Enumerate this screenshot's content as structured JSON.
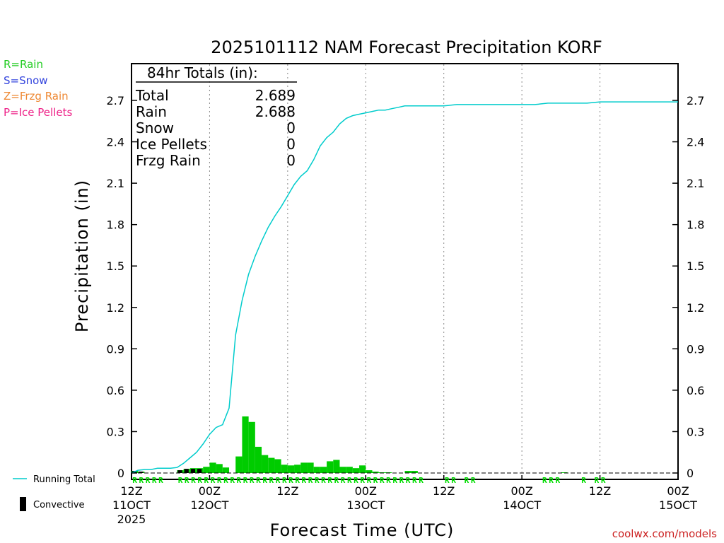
{
  "chart_data": {
    "type": "bar",
    "title": "2025101112 NAM Forecast Precipitation KORF",
    "xlabel": "Forecast Time (UTC)",
    "ylabel": "Precipitation (in)",
    "ylim": [
      0,
      2.95
    ],
    "yticks": [
      "0",
      "0.3",
      "0.6",
      "0.9",
      "1.2",
      "1.5",
      "1.8",
      "2.1",
      "2.4",
      "2.7"
    ],
    "xlim_hours": [
      0,
      84
    ],
    "xticks": [
      {
        "hour": 0,
        "line1": "12Z",
        "line2": "11OCT",
        "line3": "2025"
      },
      {
        "hour": 12,
        "line1": "00Z",
        "line2": "12OCT",
        "line3": ""
      },
      {
        "hour": 24,
        "line1": "12Z",
        "line2": "",
        "line3": ""
      },
      {
        "hour": 36,
        "line1": "00Z",
        "line2": "13OCT",
        "line3": ""
      },
      {
        "hour": 48,
        "line1": "12Z",
        "line2": "",
        "line3": ""
      },
      {
        "hour": 60,
        "line1": "00Z",
        "line2": "14OCT",
        "line3": ""
      },
      {
        "hour": 72,
        "line1": "12Z",
        "line2": "",
        "line3": ""
      },
      {
        "hour": 84,
        "line1": "00Z",
        "line2": "15OCT",
        "line3": ""
      }
    ],
    "series": [
      {
        "name": "Hourly Precipitation",
        "color": "#00cc00",
        "hours": [
          1,
          2,
          3,
          4,
          5,
          6,
          7,
          8,
          9,
          10,
          11,
          12,
          13,
          14,
          15,
          16,
          17,
          18,
          19,
          20,
          21,
          22,
          23,
          24,
          25,
          26,
          27,
          28,
          29,
          30,
          31,
          32,
          33,
          34,
          35,
          36,
          37,
          38,
          39,
          40,
          41,
          42,
          43,
          44,
          45,
          46,
          47,
          48,
          49,
          50,
          51,
          52,
          53,
          54,
          55,
          56,
          57,
          58,
          59,
          60,
          61,
          62,
          63,
          64,
          65,
          66,
          67,
          68,
          69,
          70,
          71,
          72,
          73,
          74,
          75,
          76,
          77,
          78,
          79,
          80,
          81,
          82,
          83,
          84
        ],
        "values": [
          0.015,
          0.01,
          0.0,
          0.0,
          0.0,
          0.0,
          0.0,
          0.02,
          0.03,
          0.035,
          0.035,
          0.045,
          0.075,
          0.065,
          0.04,
          0.0,
          0.12,
          0.41,
          0.37,
          0.19,
          0.13,
          0.11,
          0.1,
          0.06,
          0.055,
          0.06,
          0.075,
          0.075,
          0.045,
          0.045,
          0.085,
          0.095,
          0.045,
          0.045,
          0.035,
          0.055,
          0.02,
          0.01,
          0.005,
          0.005,
          0.0,
          0.0,
          0.015,
          0.015,
          0.0,
          0.0,
          0.0,
          0.0,
          0.0,
          0.0,
          0.0,
          0.0,
          0.0,
          0.0,
          0.0,
          0.0,
          0.0,
          0.0,
          0.0,
          0.0,
          0.0,
          0.0,
          0.0,
          0.0,
          0.0,
          0.0,
          0.005,
          0.0,
          0.0,
          0.0,
          0.0,
          0.0,
          0.0,
          0.0,
          0.0,
          0.0,
          0.0,
          0.0,
          0.0,
          0.0,
          0.0,
          0.0,
          0.0,
          0.0
        ]
      },
      {
        "name": "Convective",
        "color": "#000000",
        "hours": [
          1,
          2,
          8,
          9,
          10,
          11
        ],
        "values": [
          0.015,
          0.01,
          0.02,
          0.03,
          0.03,
          0.03
        ]
      },
      {
        "name": "Running Total",
        "color": "#00cccc",
        "hours": [
          0,
          1,
          2,
          3,
          4,
          5,
          6,
          7,
          8,
          9,
          10,
          11,
          12,
          13,
          14,
          15,
          16,
          17,
          18,
          19,
          20,
          21,
          22,
          23,
          24,
          25,
          26,
          27,
          28,
          29,
          30,
          31,
          32,
          33,
          34,
          35,
          36,
          37,
          38,
          39,
          40,
          41,
          42,
          43,
          44,
          48,
          50,
          52,
          54,
          56,
          58,
          60,
          62,
          64,
          66,
          68,
          70,
          72,
          74,
          84
        ],
        "values": [
          0.0,
          0.02,
          0.025,
          0.025,
          0.035,
          0.035,
          0.035,
          0.04,
          0.07,
          0.11,
          0.15,
          0.21,
          0.28,
          0.33,
          0.35,
          0.47,
          1.0,
          1.25,
          1.44,
          1.57,
          1.68,
          1.78,
          1.86,
          1.93,
          2.01,
          2.09,
          2.15,
          2.19,
          2.27,
          2.37,
          2.43,
          2.47,
          2.53,
          2.57,
          2.59,
          2.6,
          2.61,
          2.62,
          2.63,
          2.63,
          2.64,
          2.65,
          2.66,
          2.66,
          2.66,
          2.66,
          2.67,
          2.67,
          2.67,
          2.67,
          2.67,
          2.67,
          2.67,
          2.68,
          2.68,
          2.68,
          2.68,
          2.689,
          2.689,
          2.689
        ]
      }
    ],
    "rain_marker_hours": [
      1,
      2,
      3,
      4,
      5,
      8,
      9,
      10,
      11,
      12,
      13,
      14,
      15,
      16,
      17,
      18,
      19,
      20,
      21,
      22,
      23,
      24,
      25,
      26,
      27,
      28,
      29,
      30,
      31,
      32,
      33,
      34,
      35,
      36,
      37,
      38,
      39,
      40,
      41,
      42,
      43,
      44,
      45,
      49,
      50,
      52,
      53,
      64,
      65,
      66,
      70,
      72,
      73
    ]
  },
  "totals": {
    "header": "84hr Totals (in):",
    "rows": [
      {
        "label": "Total",
        "value": "2.689"
      },
      {
        "label": "Rain",
        "value": "2.688"
      },
      {
        "label": "Snow",
        "value": "0"
      },
      {
        "label": "Ice Pellets",
        "value": "0"
      },
      {
        "label": "Frzg Rain",
        "value": "0"
      }
    ]
  },
  "legend_types": [
    {
      "text": "R=Rain",
      "color": "#22cc22"
    },
    {
      "text": "S=Snow",
      "color": "#3344dd"
    },
    {
      "text": "Z=Frzg Rain",
      "color": "#ee8833"
    },
    {
      "text": "P=Ice Pellets",
      "color": "#ee2288"
    }
  ],
  "rain_marker_letter": "R",
  "legend_bottom": {
    "running_total": "Running Total",
    "convective": "Convective"
  },
  "credit": "coolwx.com/models"
}
